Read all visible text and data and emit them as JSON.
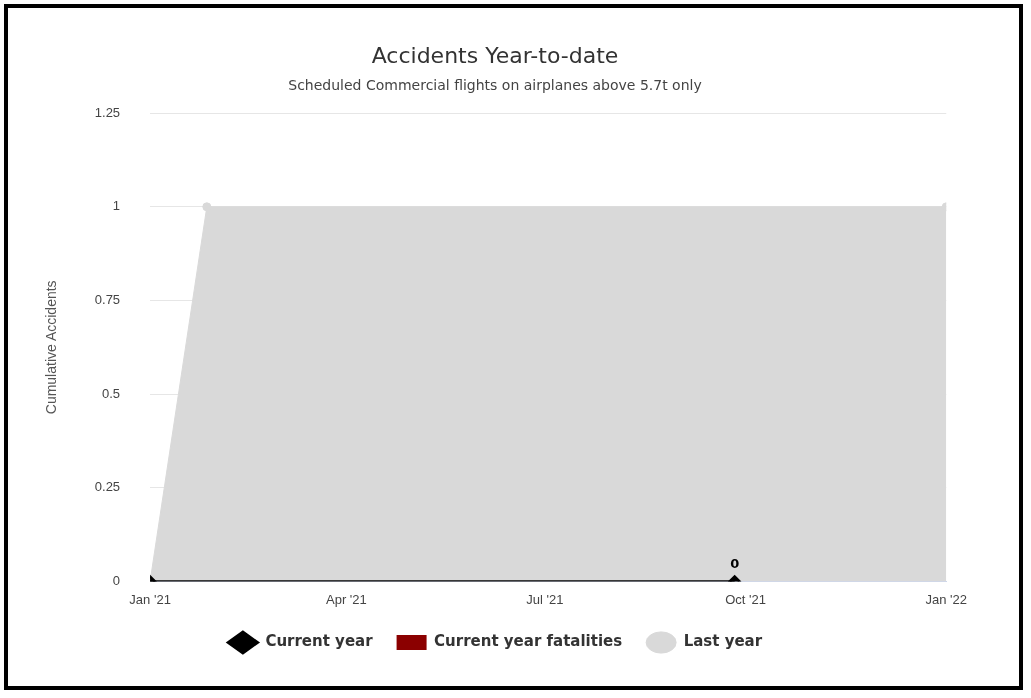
{
  "chart_data": {
    "type": "area",
    "title": "Accidents Year-to-date",
    "subtitle": "Scheduled Commercial flights on airplanes above 5.7t only",
    "ylabel": "Cumulative Accidents",
    "xlim": [
      "2021-01-01",
      "2022-01-01"
    ],
    "xticks": [
      {
        "value": "2021-01-01",
        "label": "Jan '21"
      },
      {
        "value": "2021-04-01",
        "label": "Apr '21"
      },
      {
        "value": "2021-07-01",
        "label": "Jul '21"
      },
      {
        "value": "2021-10-01",
        "label": "Oct '21"
      },
      {
        "value": "2022-01-01",
        "label": "Jan '22"
      }
    ],
    "ylim": [
      0,
      1.25
    ],
    "yticks": [
      0,
      0.25,
      0.5,
      0.75,
      1,
      1.25
    ],
    "grid": "y",
    "legend": "bottom",
    "series": [
      {
        "name": "Last year",
        "color": "#d9d9d9",
        "marker": "circle",
        "x": [
          "2021-01-01",
          "2021-01-27",
          "2022-01-01"
        ],
        "values": [
          0,
          1,
          1
        ]
      },
      {
        "name": "Current year",
        "type": "line",
        "color": "#000000",
        "marker": "diamond",
        "x": [
          "2021-01-01",
          "2021-09-26"
        ],
        "values": [
          0,
          0
        ],
        "value_labels": [
          null,
          "0"
        ]
      },
      {
        "name": "Current year fatalities",
        "type": "bar",
        "color": "#8b0000"
      }
    ]
  }
}
